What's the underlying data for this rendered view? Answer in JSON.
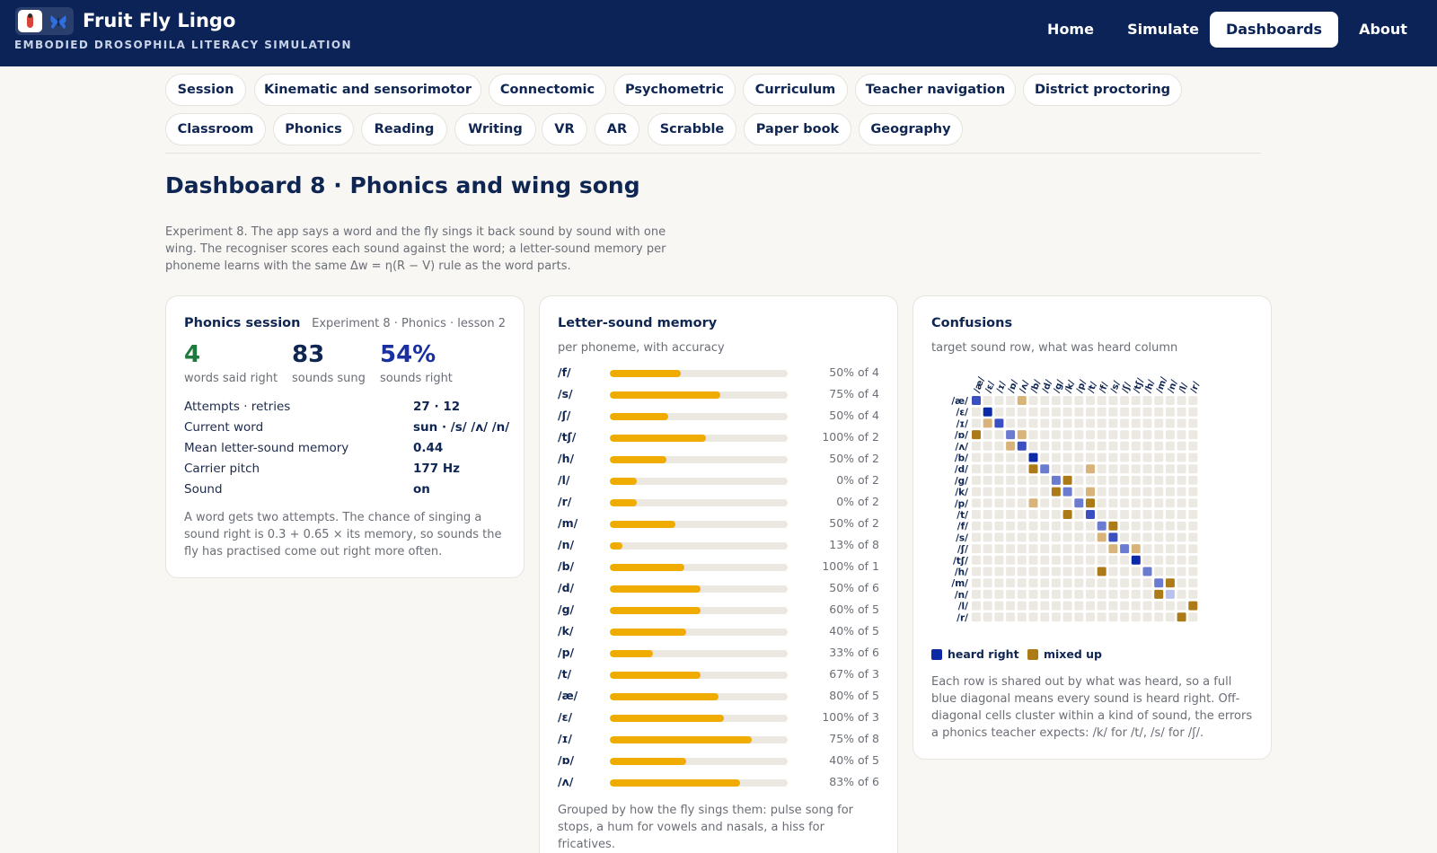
{
  "app": {
    "title": "Fruit Fly Lingo",
    "subtitle": "EMBODIED DROSOPHILA LITERACY SIMULATION",
    "nav": [
      "Home",
      "Simulate",
      "Dashboards",
      "About"
    ],
    "active_nav": "Dashboards"
  },
  "tabs_row1": [
    "Session",
    "Kinematic and sensorimotor",
    "Connectomic",
    "Psychometric",
    "Curriculum",
    "Teacher navigation",
    "District proctoring"
  ],
  "tabs_row2": [
    "Classroom",
    "Phonics",
    "Reading",
    "Writing",
    "VR",
    "AR",
    "Scrabble",
    "Paper book",
    "Geography"
  ],
  "page": {
    "title": "Dashboard 8 · Phonics and wing song",
    "intro": "Experiment 8. The app says a word and the fly sings it back sound by sound with one wing. The recogniser scores each sound against the word; a letter-sound memory per phoneme learns with the same Δw = η(R − V) rule as the word parts."
  },
  "session": {
    "title": "Phonics session",
    "meta": "Experiment 8 · Phonics · lesson 2",
    "stats": [
      {
        "value": "4",
        "label": "words said right",
        "color": "#1e7a3c"
      },
      {
        "value": "83",
        "label": "sounds sung",
        "color": "#0f2552"
      },
      {
        "value": "54%",
        "label": "sounds right",
        "color": "#1a2fa0"
      }
    ],
    "rows": [
      {
        "key": "Attempts · retries",
        "value": "27 · 12"
      },
      {
        "key": "Current word",
        "value": "sun · /s/ /ʌ/ /n/"
      },
      {
        "key": "Mean letter-sound memory",
        "value": "0.44"
      },
      {
        "key": "Carrier pitch",
        "value": "177 Hz"
      },
      {
        "key": "Sound",
        "value": "on"
      }
    ],
    "note": "A word gets two attempts. The chance of singing a sound right is 0.3 + 0.65 × its memory, so sounds the fly has practised come out right more often."
  },
  "memory": {
    "title": "Letter-sound memory",
    "subtitle": "per phoneme, with accuracy",
    "items": [
      {
        "phoneme": "/f/",
        "memory": 0.4,
        "accuracy": "50% of 4"
      },
      {
        "phoneme": "/s/",
        "memory": 0.62,
        "accuracy": "75% of 4"
      },
      {
        "phoneme": "/ʃ/",
        "memory": 0.33,
        "accuracy": "50% of 4"
      },
      {
        "phoneme": "/tʃ/",
        "memory": 0.54,
        "accuracy": "100% of 2"
      },
      {
        "phoneme": "/h/",
        "memory": 0.32,
        "accuracy": "50% of 2"
      },
      {
        "phoneme": "/l/",
        "memory": 0.15,
        "accuracy": "0% of 2"
      },
      {
        "phoneme": "/r/",
        "memory": 0.15,
        "accuracy": "0% of 2"
      },
      {
        "phoneme": "/m/",
        "memory": 0.37,
        "accuracy": "50% of 2"
      },
      {
        "phoneme": "/n/",
        "memory": 0.07,
        "accuracy": "13% of 8"
      },
      {
        "phoneme": "/b/",
        "memory": 0.42,
        "accuracy": "100% of 1"
      },
      {
        "phoneme": "/d/",
        "memory": 0.51,
        "accuracy": "50% of 6"
      },
      {
        "phoneme": "/g/",
        "memory": 0.51,
        "accuracy": "60% of 5"
      },
      {
        "phoneme": "/k/",
        "memory": 0.43,
        "accuracy": "40% of 5"
      },
      {
        "phoneme": "/p/",
        "memory": 0.24,
        "accuracy": "33% of 6"
      },
      {
        "phoneme": "/t/",
        "memory": 0.51,
        "accuracy": "67% of 3"
      },
      {
        "phoneme": "/æ/",
        "memory": 0.61,
        "accuracy": "80% of 5"
      },
      {
        "phoneme": "/ɛ/",
        "memory": 0.64,
        "accuracy": "100% of 3"
      },
      {
        "phoneme": "/ɪ/",
        "memory": 0.8,
        "accuracy": "75% of 8"
      },
      {
        "phoneme": "/ɒ/",
        "memory": 0.43,
        "accuracy": "40% of 5"
      },
      {
        "phoneme": "/ʌ/",
        "memory": 0.73,
        "accuracy": "83% of 6"
      }
    ],
    "note": "Grouped by how the fly sings them: pulse song for stops, a hum for vowels and nasals, a hiss for fricatives."
  },
  "confusions": {
    "title": "Confusions",
    "subtitle": "target sound row, what was heard column",
    "labels": [
      "/æ/",
      "/ɛ/",
      "/ɪ/",
      "/ɒ/",
      "/ʌ/",
      "/b/",
      "/d/",
      "/g/",
      "/k/",
      "/p/",
      "/t/",
      "/f/",
      "/s/",
      "/ʃ/",
      "/tʃ/",
      "/h/",
      "/m/",
      "/n/",
      "/l/",
      "/r/"
    ],
    "cells": [
      [
        0,
        0,
        "d2"
      ],
      [
        0,
        4,
        "m1"
      ],
      [
        1,
        1,
        "d3"
      ],
      [
        2,
        1,
        "m1"
      ],
      [
        2,
        2,
        "d2"
      ],
      [
        3,
        0,
        "m2"
      ],
      [
        3,
        3,
        "d1"
      ],
      [
        3,
        4,
        "m1"
      ],
      [
        4,
        3,
        "m1"
      ],
      [
        4,
        4,
        "d2"
      ],
      [
        5,
        5,
        "d3"
      ],
      [
        6,
        5,
        "m2"
      ],
      [
        6,
        6,
        "d1"
      ],
      [
        6,
        10,
        "m1"
      ],
      [
        7,
        7,
        "d1"
      ],
      [
        7,
        8,
        "m2"
      ],
      [
        8,
        7,
        "m2"
      ],
      [
        8,
        8,
        "d1"
      ],
      [
        8,
        10,
        "m1"
      ],
      [
        9,
        5,
        "m1"
      ],
      [
        9,
        9,
        "d1"
      ],
      [
        9,
        10,
        "m2"
      ],
      [
        10,
        8,
        "m2"
      ],
      [
        10,
        10,
        "d2"
      ],
      [
        11,
        11,
        "d1"
      ],
      [
        11,
        12,
        "m2"
      ],
      [
        12,
        11,
        "m1"
      ],
      [
        12,
        12,
        "d2"
      ],
      [
        13,
        12,
        "m1"
      ],
      [
        13,
        13,
        "d1"
      ],
      [
        13,
        14,
        "m1"
      ],
      [
        14,
        14,
        "d3"
      ],
      [
        15,
        11,
        "m2"
      ],
      [
        15,
        15,
        "d1"
      ],
      [
        16,
        16,
        "d1"
      ],
      [
        16,
        17,
        "m2"
      ],
      [
        17,
        16,
        "m2"
      ],
      [
        17,
        17,
        "d0"
      ],
      [
        18,
        19,
        "m2"
      ],
      [
        19,
        18,
        "m2"
      ]
    ],
    "legend": [
      {
        "label": "heard right",
        "color": "#0d2aa6"
      },
      {
        "label": "mixed up",
        "color": "#ad7a18"
      }
    ],
    "note": "Each row is shared out by what was heard, so a full blue diagonal means every sound is heard right. Off-diagonal cells cluster within a kind of sound, the errors a phonics teacher expects: /k/ for /t/, /s/ for /ʃ/."
  }
}
